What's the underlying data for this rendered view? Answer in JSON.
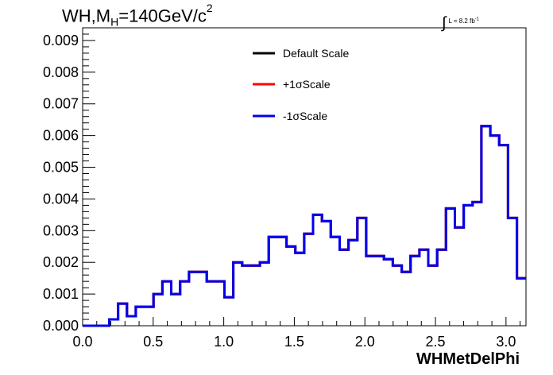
{
  "title": {
    "main": "WH,M",
    "sub": "H",
    "tail": "=140GeV/c",
    "sup": "2"
  },
  "lumi": {
    "text": "L = 8.2 fb",
    "sup": "-1"
  },
  "chart_data": {
    "type": "line",
    "xlabel": "WHMetDelPhi",
    "ylabel": "",
    "xlim": [
      0,
      3.14159
    ],
    "ylim": [
      0,
      0.0094
    ],
    "x_ticks": [
      "0.0",
      "0.5",
      "1.0",
      "1.5",
      "2.0",
      "2.5",
      "3.0"
    ],
    "y_ticks": [
      "0.000",
      "0.001",
      "0.002",
      "0.003",
      "0.004",
      "0.005",
      "0.006",
      "0.007",
      "0.008",
      "0.009"
    ],
    "bin_width": 0.0628,
    "grid": false,
    "legend_position": "top",
    "series": [
      {
        "name": "Default Scale",
        "color": "#000000",
        "values": [
          0,
          0,
          0,
          0.0002,
          0.0007,
          0.0003,
          0.0006,
          0.0006,
          0.001,
          0.0014,
          0.001,
          0.0014,
          0.0017,
          0.0017,
          0.0014,
          0.0014,
          0.0009,
          0.002,
          0.0019,
          0.0019,
          0.002,
          0.0028,
          0.0028,
          0.0025,
          0.0023,
          0.0029,
          0.0035,
          0.0033,
          0.0028,
          0.0024,
          0.0027,
          0.0034,
          0.0022,
          0.0022,
          0.0021,
          0.0019,
          0.0017,
          0.0022,
          0.0024,
          0.0019,
          0.0024,
          0.0037,
          0.0031,
          0.0038,
          0.0039,
          0.0063,
          0.006,
          0.0057,
          0.0034,
          0.0015
        ]
      },
      {
        "name": "+1σScale",
        "color": "#ff0000",
        "values": [
          0,
          0,
          0,
          0.0002,
          0.0007,
          0.0003,
          0.0006,
          0.0006,
          0.001,
          0.0014,
          0.001,
          0.0014,
          0.0017,
          0.0017,
          0.0014,
          0.0014,
          0.0009,
          0.002,
          0.0019,
          0.0019,
          0.002,
          0.0028,
          0.0028,
          0.0025,
          0.0023,
          0.0029,
          0.0035,
          0.0033,
          0.0028,
          0.0024,
          0.0027,
          0.0034,
          0.0022,
          0.0022,
          0.0021,
          0.0019,
          0.0017,
          0.0022,
          0.0024,
          0.0019,
          0.0024,
          0.0037,
          0.0031,
          0.0038,
          0.0039,
          0.0063,
          0.006,
          0.0057,
          0.0034,
          0.0015
        ]
      },
      {
        "name": "-1σScale",
        "color": "#0000ee",
        "values": [
          0,
          0,
          0,
          0.0002,
          0.0007,
          0.0003,
          0.0006,
          0.0006,
          0.001,
          0.0014,
          0.001,
          0.0014,
          0.0017,
          0.0017,
          0.0014,
          0.0014,
          0.0009,
          0.002,
          0.0019,
          0.0019,
          0.002,
          0.0028,
          0.0028,
          0.0025,
          0.0023,
          0.0029,
          0.0035,
          0.0033,
          0.0028,
          0.0024,
          0.0027,
          0.0034,
          0.0022,
          0.0022,
          0.0021,
          0.0019,
          0.0017,
          0.0022,
          0.0024,
          0.0019,
          0.0024,
          0.0037,
          0.0031,
          0.0038,
          0.0039,
          0.0063,
          0.006,
          0.0057,
          0.0034,
          0.0015
        ]
      }
    ]
  }
}
